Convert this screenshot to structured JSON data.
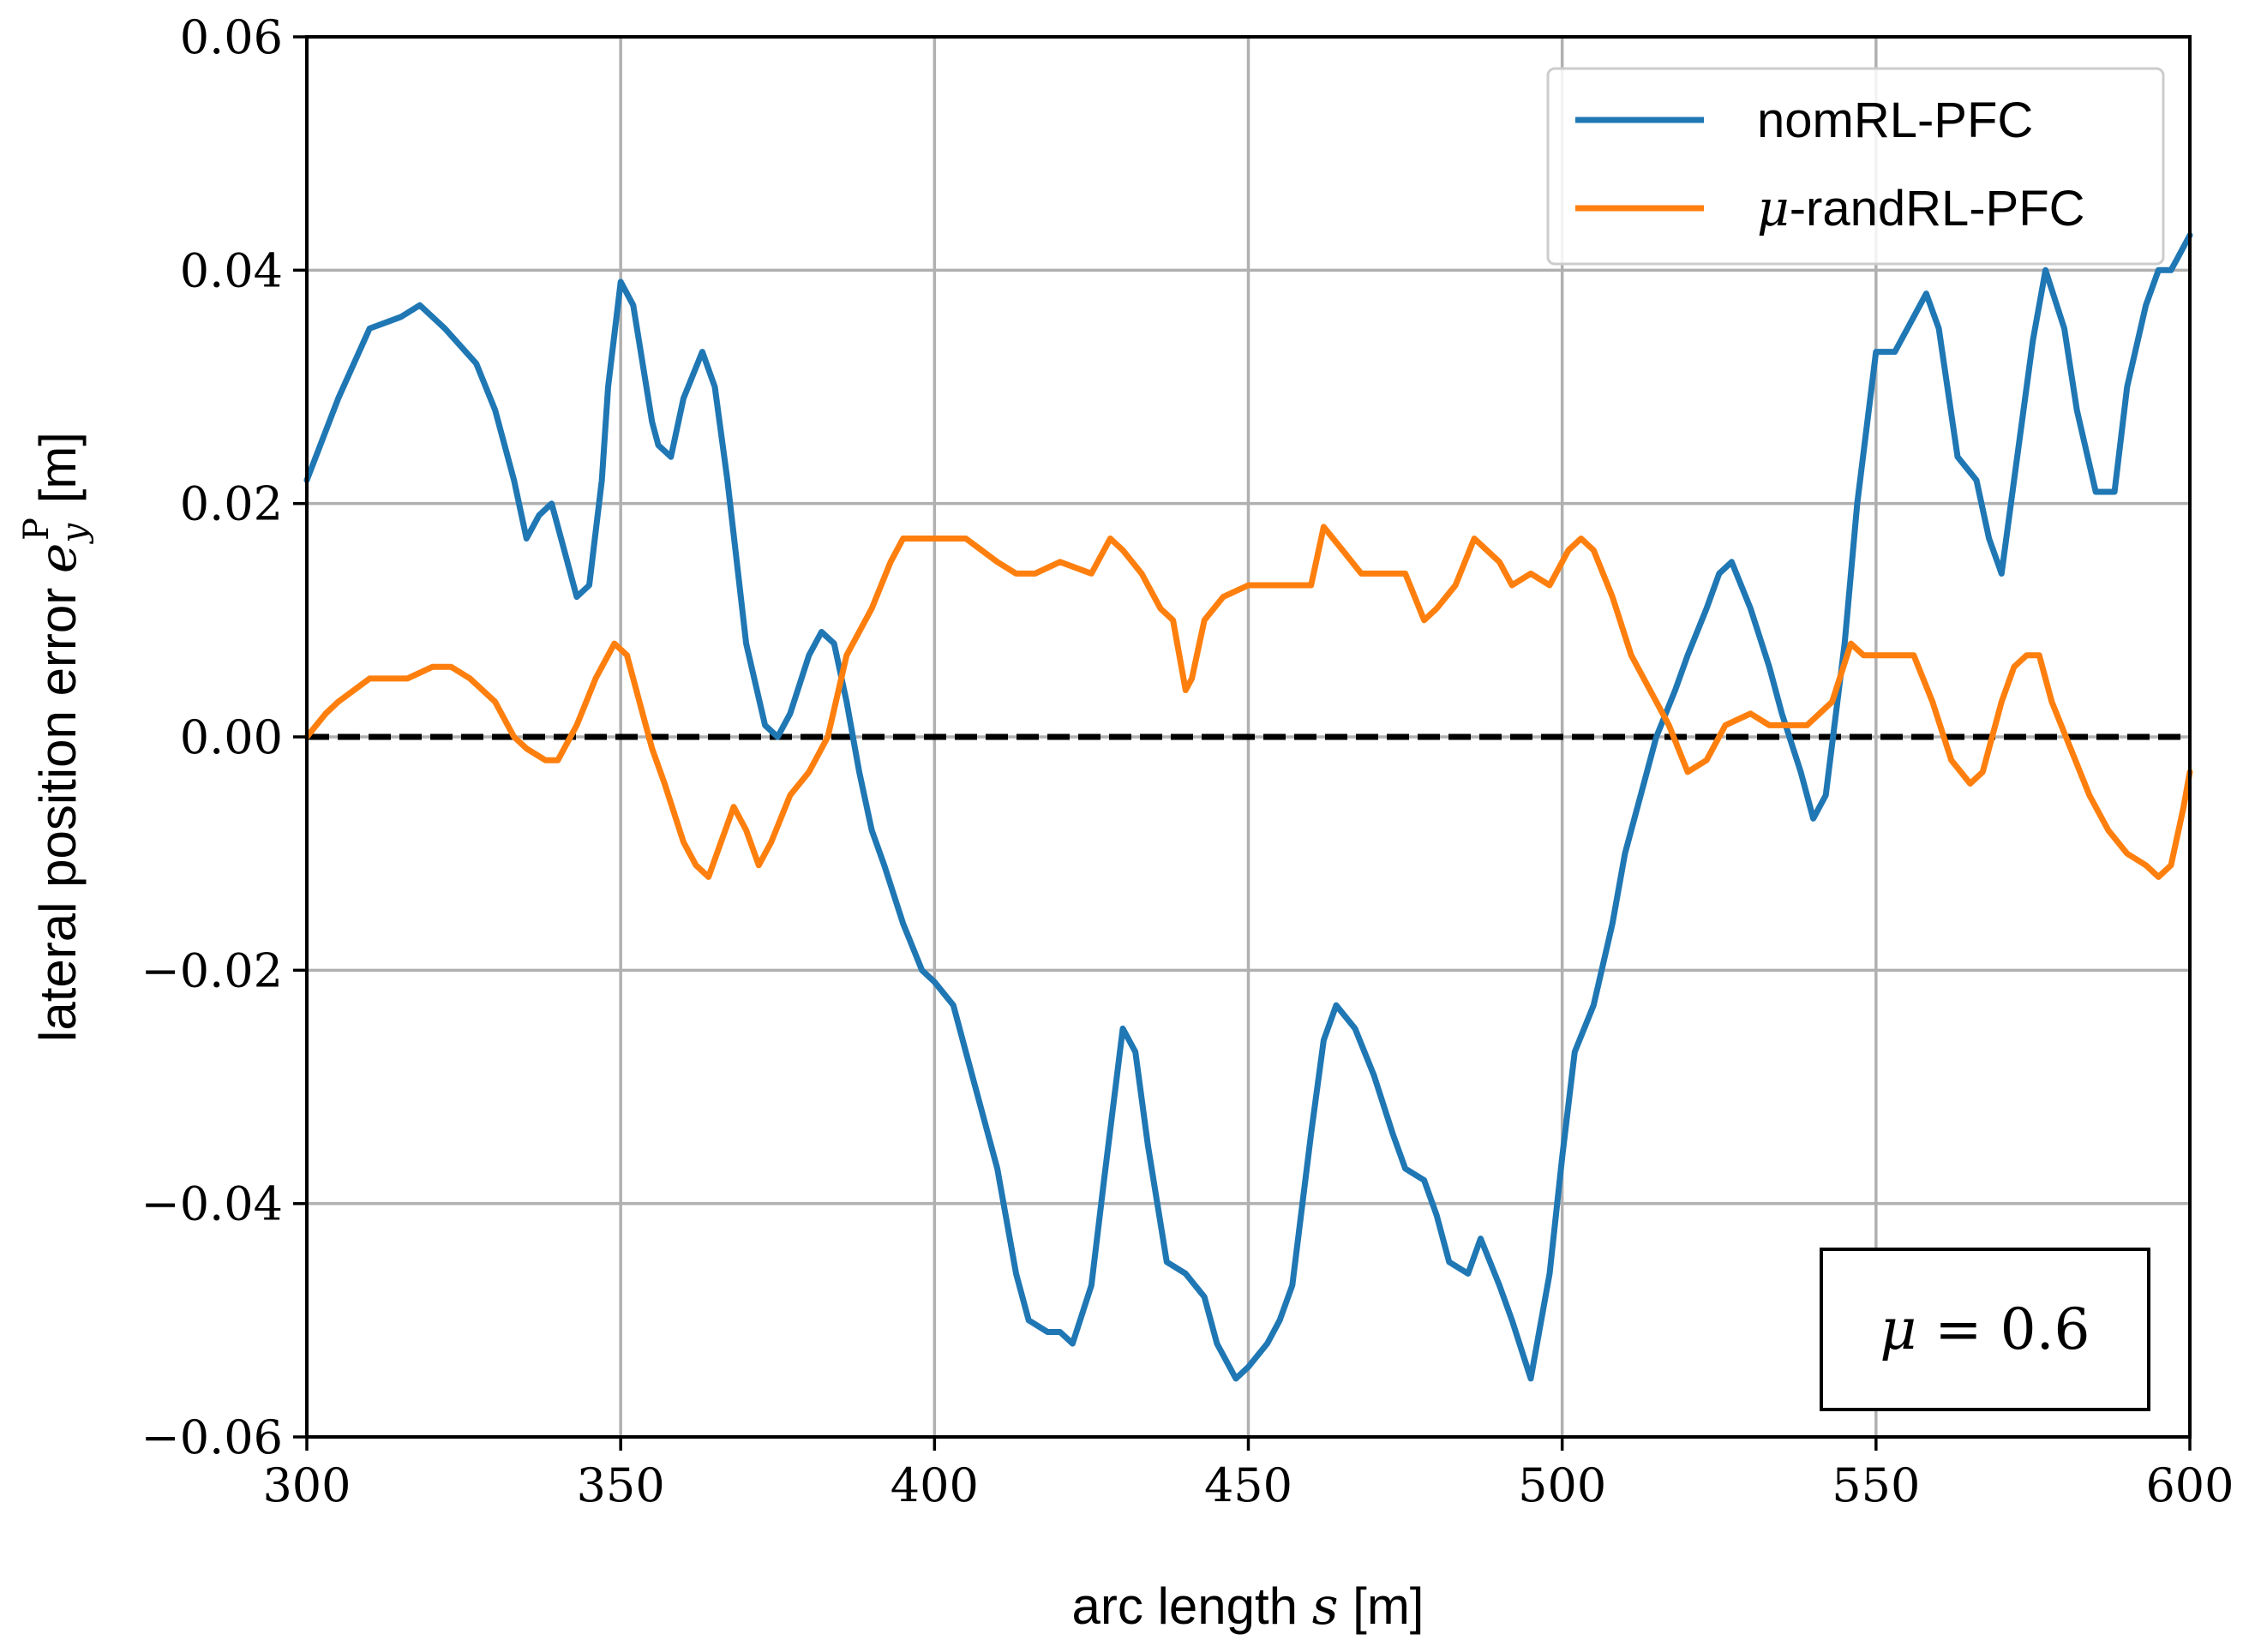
{
  "chart_data": {
    "type": "line",
    "title": "",
    "xlabel": {
      "prefix": "arc length ",
      "var": "s",
      "unit": " [m]"
    },
    "ylabel": {
      "prefix": "lateral position error ",
      "var": "e",
      "sub": "y",
      "sup": "P",
      "unit": " [m]"
    },
    "xlim": [
      300,
      600
    ],
    "ylim": [
      -0.06,
      0.06
    ],
    "xticks": [
      300,
      350,
      400,
      450,
      500,
      550,
      600
    ],
    "xtick_labels": [
      "300",
      "350",
      "400",
      "450",
      "500",
      "550",
      "600"
    ],
    "yticks": [
      -0.06,
      -0.04,
      -0.02,
      0.0,
      0.02,
      0.04,
      0.06
    ],
    "ytick_labels": [
      "−0.06",
      "−0.04",
      "−0.02",
      "0.00",
      "0.02",
      "0.04",
      "0.06"
    ],
    "grid": true,
    "legend_position": "top-right",
    "reference_line": {
      "y": 0.0,
      "style": "dashed",
      "color": "#000000"
    },
    "annotation": {
      "mu": "μ",
      "text": " = 0.6"
    },
    "series": [
      {
        "name": "nomRL-PFC",
        "legend_text": "nomRL-PFC",
        "color": "#1f77b4",
        "x": [
          300,
          305,
          310,
          315,
          318,
          322,
          327,
          330,
          333,
          335,
          337,
          339,
          341,
          343,
          345,
          347,
          348,
          350,
          352,
          355,
          356,
          358,
          360,
          363,
          365,
          367,
          370,
          373,
          375,
          377,
          380,
          382,
          384,
          386,
          388,
          390,
          392,
          395,
          398,
          400,
          403,
          405,
          410,
          413,
          415,
          418,
          420,
          422,
          425,
          427,
          430,
          432,
          434,
          437,
          440,
          443,
          445,
          448,
          450,
          453,
          455,
          457,
          460,
          462,
          464,
          467,
          470,
          473,
          475,
          478,
          480,
          482,
          485,
          487,
          490,
          492,
          495,
          498,
          500,
          502,
          505,
          508,
          510,
          513,
          515,
          518,
          520,
          523,
          525,
          527,
          530,
          533,
          535,
          538,
          540,
          542,
          545,
          547,
          550,
          553,
          556,
          558,
          560,
          563,
          566,
          568,
          570,
          572,
          575,
          577,
          580,
          582,
          585,
          588,
          590,
          593,
          595,
          597,
          598,
          600
        ],
        "y": [
          0.022,
          0.029,
          0.035,
          0.036,
          0.037,
          0.035,
          0.032,
          0.028,
          0.022,
          0.017,
          0.019,
          0.02,
          0.016,
          0.012,
          0.013,
          0.022,
          0.03,
          0.039,
          0.037,
          0.027,
          0.025,
          0.024,
          0.029,
          0.033,
          0.03,
          0.022,
          0.008,
          0.001,
          0.0,
          0.002,
          0.007,
          0.009,
          0.008,
          0.003,
          -0.003,
          -0.008,
          -0.011,
          -0.016,
          -0.02,
          -0.021,
          -0.023,
          -0.027,
          -0.037,
          -0.046,
          -0.05,
          -0.051,
          -0.051,
          -0.052,
          -0.047,
          -0.038,
          -0.025,
          -0.027,
          -0.035,
          -0.045,
          -0.046,
          -0.048,
          -0.052,
          -0.055,
          -0.054,
          -0.052,
          -0.05,
          -0.047,
          -0.034,
          -0.026,
          -0.023,
          -0.025,
          -0.029,
          -0.034,
          -0.037,
          -0.038,
          -0.041,
          -0.045,
          -0.046,
          -0.043,
          -0.047,
          -0.05,
          -0.055,
          -0.046,
          -0.036,
          -0.027,
          -0.023,
          -0.016,
          -0.01,
          -0.004,
          0.0,
          0.004,
          0.007,
          0.011,
          0.014,
          0.015,
          0.011,
          0.006,
          0.002,
          -0.003,
          -0.007,
          -0.005,
          0.008,
          0.02,
          0.033,
          0.033,
          0.036,
          0.038,
          0.035,
          0.024,
          0.022,
          0.017,
          0.014,
          0.022,
          0.034,
          0.04,
          0.035,
          0.028,
          0.021,
          0.021,
          0.03,
          0.037,
          0.04,
          0.04,
          0.041,
          0.043
        ]
      },
      {
        "name": "μ-randRL-PFC",
        "legend_mu": "μ",
        "legend_text": "-randRL-PFC",
        "color": "#ff7f0e",
        "x": [
          300,
          303,
          305,
          310,
          313,
          316,
          320,
          323,
          326,
          330,
          333,
          335,
          338,
          340,
          343,
          346,
          349,
          351,
          353,
          355,
          357,
          360,
          362,
          364,
          366,
          368,
          370,
          372,
          374,
          377,
          380,
          383,
          386,
          390,
          393,
          395,
          398,
          401,
          405,
          410,
          413,
          416,
          420,
          425,
          428,
          430,
          433,
          436,
          438,
          440,
          441,
          443,
          446,
          450,
          453,
          456,
          460,
          462,
          465,
          468,
          470,
          473,
          475,
          478,
          480,
          483,
          486,
          490,
          492,
          495,
          498,
          501,
          503,
          505,
          508,
          511,
          514,
          517,
          520,
          523,
          526,
          530,
          533,
          536,
          539,
          541,
          543,
          546,
          548,
          550,
          553,
          556,
          559,
          562,
          565,
          567,
          570,
          572,
          574,
          576,
          578,
          581,
          584,
          587,
          590,
          593,
          595,
          597,
          599,
          600
        ],
        "y": [
          0.0,
          0.002,
          0.003,
          0.005,
          0.005,
          0.005,
          0.006,
          0.006,
          0.005,
          0.003,
          0.0,
          -0.001,
          -0.002,
          -0.002,
          0.001,
          0.005,
          0.008,
          0.007,
          0.003,
          -0.001,
          -0.004,
          -0.009,
          -0.011,
          -0.012,
          -0.009,
          -0.006,
          -0.008,
          -0.011,
          -0.009,
          -0.005,
          -0.003,
          0.0,
          0.007,
          0.011,
          0.015,
          0.017,
          0.017,
          0.017,
          0.017,
          0.015,
          0.014,
          0.014,
          0.015,
          0.014,
          0.017,
          0.016,
          0.014,
          0.011,
          0.01,
          0.004,
          0.005,
          0.01,
          0.012,
          0.013,
          0.013,
          0.013,
          0.013,
          0.018,
          0.016,
          0.014,
          0.014,
          0.014,
          0.014,
          0.01,
          0.011,
          0.013,
          0.017,
          0.015,
          0.013,
          0.014,
          0.013,
          0.016,
          0.017,
          0.016,
          0.012,
          0.007,
          0.004,
          0.001,
          -0.003,
          -0.002,
          0.001,
          0.002,
          0.001,
          0.001,
          0.001,
          0.002,
          0.003,
          0.008,
          0.007,
          0.007,
          0.007,
          0.007,
          0.003,
          -0.002,
          -0.004,
          -0.003,
          0.003,
          0.006,
          0.007,
          0.007,
          0.003,
          -0.001,
          -0.005,
          -0.008,
          -0.01,
          -0.011,
          -0.012,
          -0.011,
          -0.006,
          -0.003
        ]
      }
    ]
  }
}
